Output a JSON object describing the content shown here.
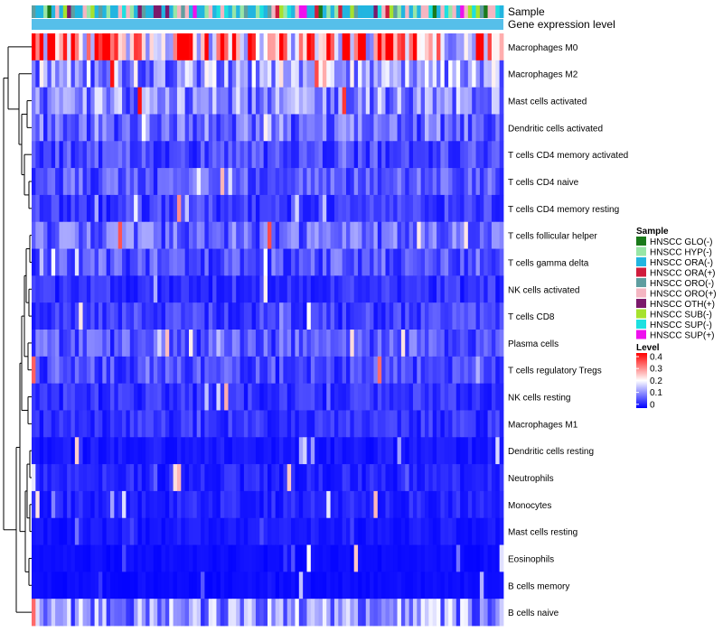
{
  "chart_data": {
    "type": "heatmap",
    "annotation_labels": [
      "Sample",
      "Gene expression level"
    ],
    "rows": [
      {
        "name": "Macrophages M0",
        "mean": 0.3
      },
      {
        "name": "Macrophages M2",
        "mean": 0.13
      },
      {
        "name": "Mast cells activated",
        "mean": 0.11
      },
      {
        "name": "Dendritic cells activated",
        "mean": 0.09
      },
      {
        "name": "T cells CD4 memory activated",
        "mean": 0.06
      },
      {
        "name": "T cells CD4 naive",
        "mean": 0.07
      },
      {
        "name": "T cells CD4 memory resting",
        "mean": 0.05
      },
      {
        "name": "T cells follicular helper",
        "mean": 0.08
      },
      {
        "name": "T cells gamma delta",
        "mean": 0.07
      },
      {
        "name": "NK cells activated",
        "mean": 0.04
      },
      {
        "name": "T cells CD8",
        "mean": 0.05
      },
      {
        "name": "Plasma cells",
        "mean": 0.07
      },
      {
        "name": "T cells regulatory  Tregs",
        "mean": 0.06
      },
      {
        "name": "NK cells resting",
        "mean": 0.04
      },
      {
        "name": "Macrophages M1",
        "mean": 0.04
      },
      {
        "name": "Dendritic cells resting",
        "mean": 0.02
      },
      {
        "name": "Neutrophils",
        "mean": 0.03
      },
      {
        "name": "Monocytes",
        "mean": 0.03
      },
      {
        "name": "Mast cells resting",
        "mean": 0.02
      },
      {
        "name": "Eosinophils",
        "mean": 0.01
      },
      {
        "name": "B cells memory",
        "mean": 0.01
      },
      {
        "name": "B cells naive",
        "mean": 0.12
      }
    ],
    "n_samples": 120,
    "legend_sample": {
      "title": "Sample",
      "items": [
        {
          "label": "HNSCC GLO(-)",
          "color": "#1a7a1a"
        },
        {
          "label": "HNSCC HYP(-)",
          "color": "#98e6a6"
        },
        {
          "label": "HNSCC ORA(-)",
          "color": "#22b5e0"
        },
        {
          "label": "HNSCC ORA(+)",
          "color": "#d01c3c"
        },
        {
          "label": "HNSCC ORO(-)",
          "color": "#5f9ea0"
        },
        {
          "label": "HNSCC ORO(+)",
          "color": "#f4b6c2"
        },
        {
          "label": "HNSCC OTH(+)",
          "color": "#7b1a6b"
        },
        {
          "label": "HNSCC SUB(-)",
          "color": "#a6e22e"
        },
        {
          "label": "HNSCC SUP(-)",
          "color": "#1de0e0"
        },
        {
          "label": "HNSCC SUP(+)",
          "color": "#ee10ee"
        }
      ]
    },
    "legend_level": {
      "title": "Level",
      "ticks": [
        "0.4",
        "0.3",
        "0.2",
        "0.1",
        "0"
      ],
      "range": [
        0,
        0.42
      ]
    },
    "colors": {
      "low": "#0000ff",
      "mid": "#ffffff",
      "high": "#ff0000",
      "expression_bar": "#56bfea"
    }
  }
}
